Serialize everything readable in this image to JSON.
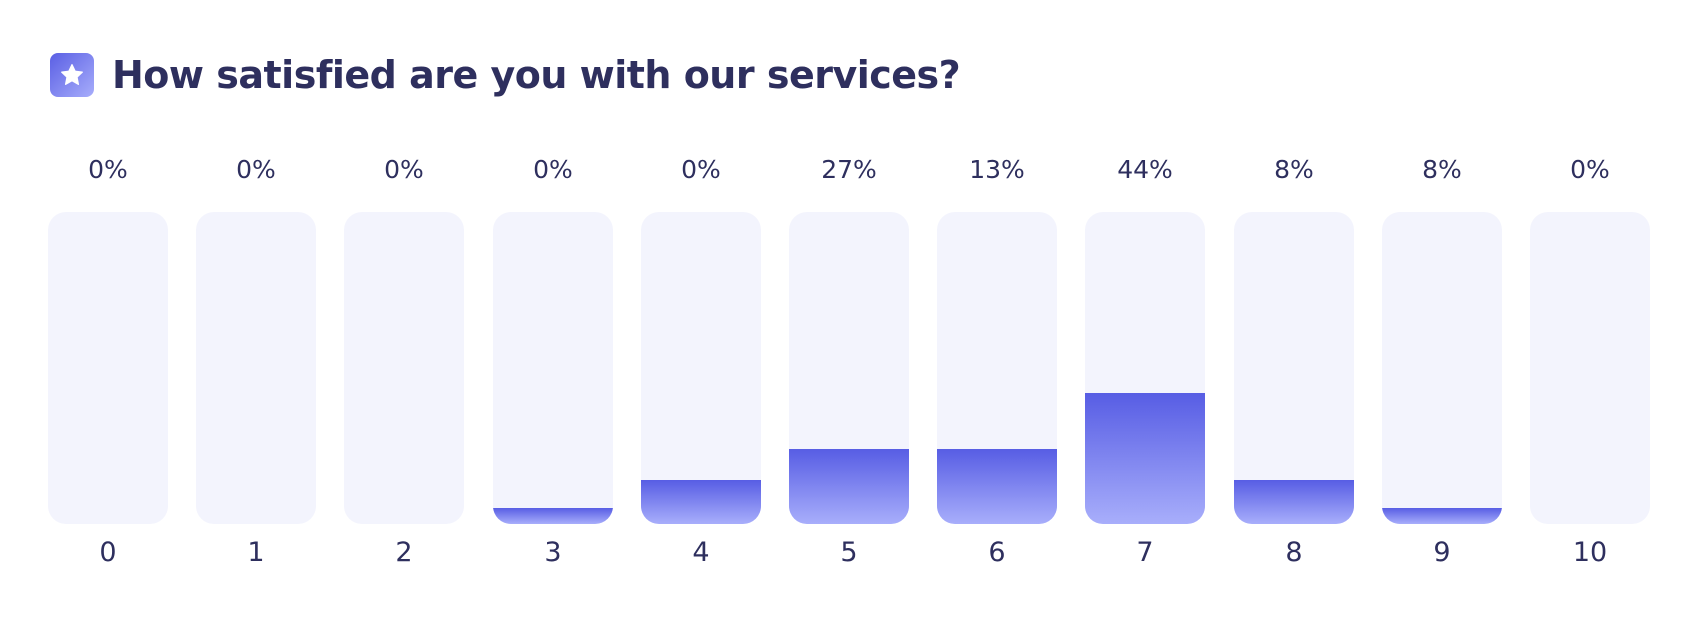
{
  "header": {
    "title": "How satisfied are you with our services?",
    "icon": "star-icon"
  },
  "colors": {
    "text": "#2e2f5e",
    "track": "#f3f4fd",
    "fill_top": "#575de4",
    "fill_bottom": "#a8aefb"
  },
  "chart_data": {
    "type": "bar",
    "title": "How satisfied are you with our services?",
    "categories": [
      "0",
      "1",
      "2",
      "3",
      "4",
      "5",
      "6",
      "7",
      "8",
      "9",
      "10"
    ],
    "values": [
      0,
      0,
      0,
      0,
      0,
      27,
      13,
      44,
      8,
      8,
      0
    ],
    "labels": [
      "0%",
      "0%",
      "0%",
      "0%",
      "0%",
      "27%",
      "13%",
      "44%",
      "8%",
      "8%",
      "0%"
    ],
    "bar_fill_fraction": [
      0,
      0,
      0,
      0.05,
      0.14,
      0.24,
      0.24,
      0.42,
      0.14,
      0.05,
      0
    ],
    "xlabel": "",
    "ylabel": "",
    "ylim": [
      0,
      100
    ],
    "grid": false
  }
}
